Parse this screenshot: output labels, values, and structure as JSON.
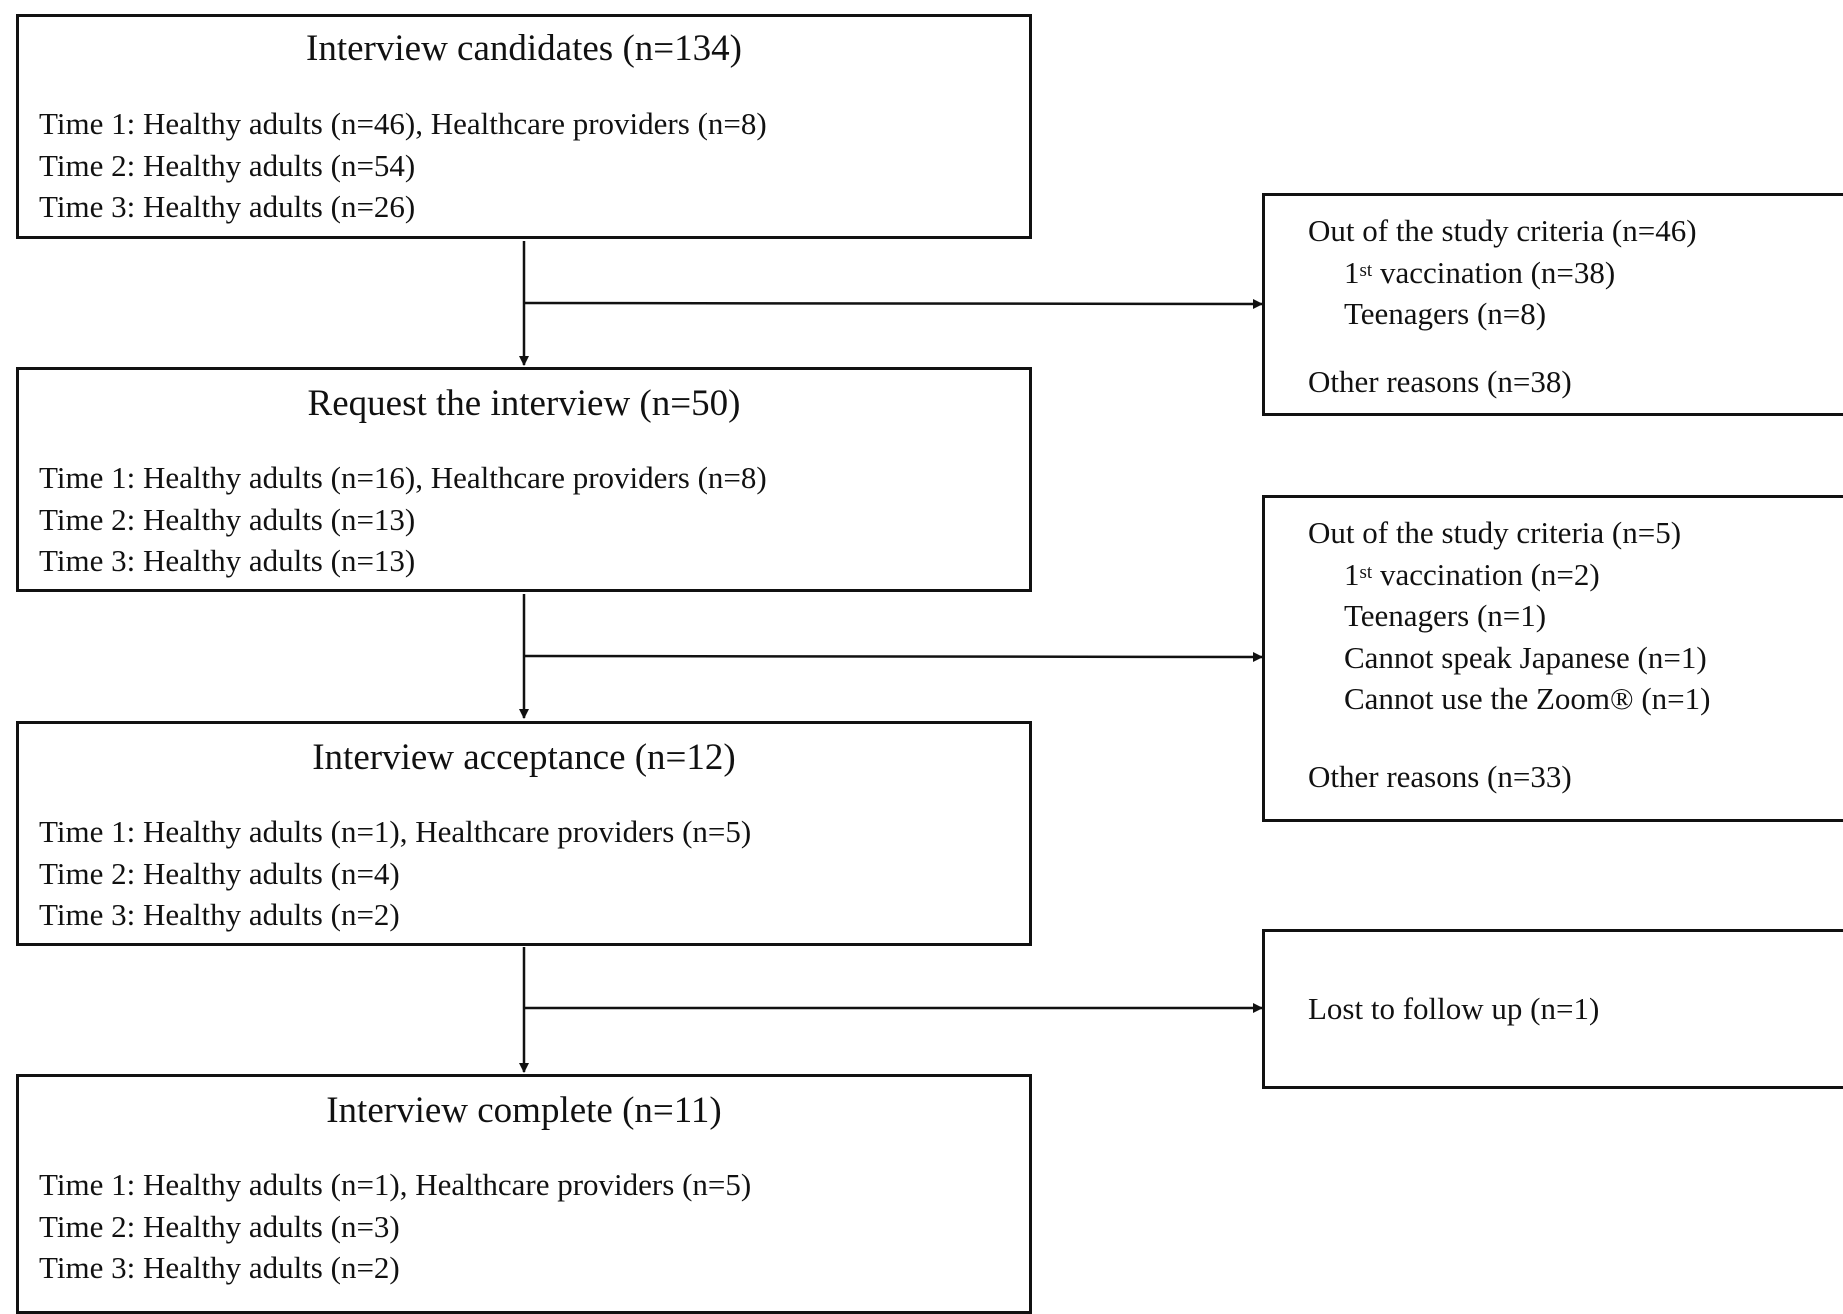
{
  "flow": {
    "stages": [
      {
        "title": "Interview  candidates  (n=134)",
        "lines": [
          "Time 1: Healthy adults (n=46), Healthcare  providers (n=8)",
          "Time 2: Healthy adults (n=54)",
          "Time 3: Healthy adults (n=26)"
        ]
      },
      {
        "title": "Request the interview (n=50)",
        "lines": [
          "Time 1: Healthy adults (n=16), Healthcare  providers (n=8)",
          "Time 2: Healthy adults (n=13)",
          "Time 3: Healthy adults (n=13)"
        ]
      },
      {
        "title": "Interview  acceptance  (n=12)",
        "lines": [
          "Time 1: Healthy adults (n=1), Healthcare providers (n=5)",
          "Time 2: Healthy adults (n=4)",
          "Time 3: Healthy adults (n=2)"
        ]
      },
      {
        "title": "Interview  complete  (n=11)",
        "lines": [
          "Time 1: Healthy adults (n=1), Healthcare providers (n=5)",
          "Time 2: Healthy adults (n=3)",
          "Time 3: Healthy adults (n=2)"
        ]
      }
    ],
    "exclusions": [
      {
        "criteria_label": "Out of the study criteria  (n=46)",
        "vaccination": {
          "num": "1",
          "sup": "st",
          "rest": " vaccination  (n=38)"
        },
        "teenagers": "Teenagers  (n=8)",
        "other": "Other reasons (n=38)"
      },
      {
        "criteria_label": "Out of the study criteria  (n=5)",
        "vaccination": {
          "num": "1",
          "sup": "st",
          "rest": " vaccination  (n=2)"
        },
        "teenagers": "Teenagers  (n=1)",
        "japanese": "Cannot speak Japanese (n=1)",
        "zoom": "Cannot use the Zoom® (n=1)",
        "other": "Other reasons (n=33)"
      },
      {
        "lost": "Lost to follow up (n=1)"
      }
    ]
  }
}
